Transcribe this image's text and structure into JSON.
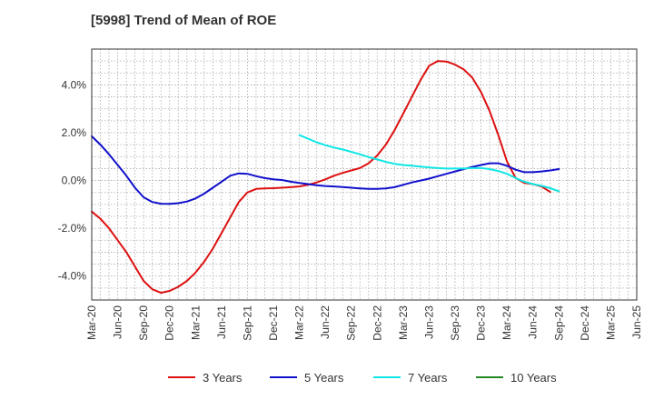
{
  "chart_data": {
    "type": "line",
    "title": "[5998]  Trend of Mean of ROE",
    "xlabel": "",
    "ylabel": "",
    "x_ticks": [
      "Mar-20",
      "Jun-20",
      "Sep-20",
      "Dec-20",
      "Mar-21",
      "Jun-21",
      "Sep-21",
      "Dec-21",
      "Mar-22",
      "Jun-22",
      "Sep-22",
      "Dec-22",
      "Mar-23",
      "Jun-23",
      "Sep-23",
      "Dec-23",
      "Mar-24",
      "Jun-24",
      "Sep-24",
      "Dec-24",
      "Mar-25",
      "Jun-25"
    ],
    "y_ticks": [
      "4.0%",
      "2.0%",
      "0.0%",
      "-2.0%",
      "-4.0%"
    ],
    "y_tick_values": [
      4,
      2,
      0,
      -2,
      -4
    ],
    "ylim": [
      -5.0,
      5.5
    ],
    "grid": true,
    "legend_position": "bottom",
    "series": [
      {
        "name": "3 Years",
        "color": "#dd1111",
        "start_index": 0,
        "values": [
          -1.3,
          -1.6,
          -2.0,
          -2.5,
          -3.0,
          -3.6,
          -4.2,
          -4.55,
          -4.7,
          -4.62,
          -4.45,
          -4.2,
          -3.85,
          -3.4,
          -2.85,
          -2.2,
          -1.55,
          -0.9,
          -0.5,
          -0.35,
          -0.33,
          -0.32,
          -0.3,
          -0.28,
          -0.25,
          -0.18,
          -0.08,
          0.05,
          0.2,
          0.32,
          0.42,
          0.52,
          0.72,
          1.05,
          1.5,
          2.1,
          2.8,
          3.5,
          4.2,
          4.8,
          5.0,
          4.98,
          4.85,
          4.65,
          4.3,
          3.7,
          2.9,
          1.9,
          0.8,
          0.1,
          -0.1,
          -0.15,
          -0.25,
          -0.48
        ]
      },
      {
        "name": "5 Years",
        "color": "#1111cc",
        "start_index": 0,
        "values": [
          1.85,
          1.5,
          1.1,
          0.65,
          0.2,
          -0.3,
          -0.7,
          -0.9,
          -0.97,
          -0.98,
          -0.95,
          -0.88,
          -0.75,
          -0.55,
          -0.3,
          -0.05,
          0.2,
          0.3,
          0.28,
          0.18,
          0.1,
          0.05,
          0.02,
          -0.05,
          -0.1,
          -0.15,
          -0.2,
          -0.23,
          -0.25,
          -0.27,
          -0.3,
          -0.33,
          -0.35,
          -0.35,
          -0.33,
          -0.28,
          -0.18,
          -0.08,
          0.0,
          0.08,
          0.18,
          0.28,
          0.38,
          0.48,
          0.57,
          0.65,
          0.72,
          0.72,
          0.62,
          0.45,
          0.35,
          0.35,
          0.38,
          0.42,
          0.48
        ]
      },
      {
        "name": "7 Years",
        "color": "#11e6e6",
        "start_index": 24,
        "values": [
          1.9,
          1.75,
          1.6,
          1.48,
          1.38,
          1.3,
          1.2,
          1.1,
          0.98,
          0.88,
          0.78,
          0.7,
          0.65,
          0.62,
          0.58,
          0.55,
          0.52,
          0.5,
          0.5,
          0.5,
          0.52,
          0.52,
          0.48,
          0.4,
          0.28,
          0.1,
          -0.05,
          -0.15,
          -0.22,
          -0.32,
          -0.45
        ]
      },
      {
        "name": "10 Years",
        "color": "#228822",
        "start_index": 0,
        "values": []
      }
    ]
  }
}
